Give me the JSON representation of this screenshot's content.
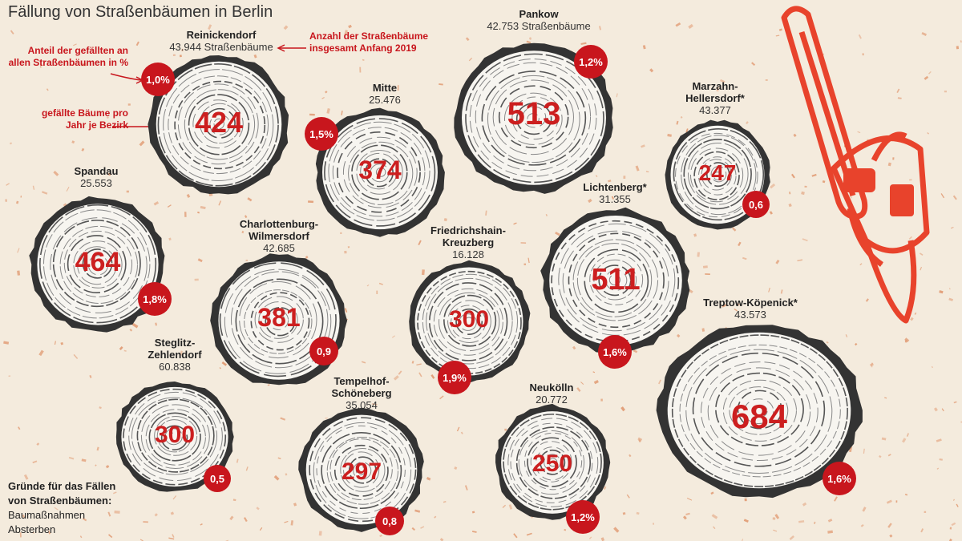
{
  "title": "Fällung von Straßenbäumen in Berlin",
  "annotations": {
    "share": "Anteil der gefällten an allen Straßenbäumen in %",
    "felled": "gefällte Bäume pro Jahr je Bezirk",
    "total": "Anzahl der Straßenbäume insgesamt Anfang 2019"
  },
  "districts": [
    {
      "name": "Reinickendorf",
      "trees": "43.944 Straßenbäume",
      "felled": "424",
      "share": "1,0%"
    },
    {
      "name": "Pankow",
      "trees": "42.753 Straßenbäume",
      "felled": "513",
      "share": "1,2%"
    },
    {
      "name": "Mitte",
      "trees": "25.476",
      "felled": "374",
      "share": "1,5%"
    },
    {
      "name": "Marzahn-Hellersdorf*",
      "trees": "43.377",
      "felled": "247",
      "share": "0,6"
    },
    {
      "name": "Spandau",
      "trees": "25.553",
      "felled": "464",
      "share": "1,8%"
    },
    {
      "name": "Charlottenburg-Wilmersdorf",
      "trees": "42.685",
      "felled": "381",
      "share": "0,9"
    },
    {
      "name": "Friedrichshain-Kreuzberg",
      "trees": "16.128",
      "felled": "300",
      "share": "1,9%"
    },
    {
      "name": "Lichtenberg*",
      "trees": "31.355",
      "felled": "511",
      "share": "1,6%"
    },
    {
      "name": "Treptow-Köpenick*",
      "trees": "43.573",
      "felled": "684",
      "share": "1,6%"
    },
    {
      "name": "Steglitz-Zehlendorf",
      "trees": "60.838",
      "felled": "300",
      "share": "0,5"
    },
    {
      "name": "Tempelhof-Schöneberg",
      "trees": "35.054",
      "felled": "297",
      "share": "0,8"
    },
    {
      "name": "Neukölln",
      "trees": "20.772",
      "felled": "250",
      "share": "1,2%"
    }
  ],
  "legend": {
    "title": "Gründe für das Fällen von Straßenbäumen:",
    "items": [
      "Baumaßnahmen",
      "Absterben"
    ]
  },
  "colors": {
    "accent": "#c8161d",
    "bark": "#333333",
    "wood": "#f7f5f0",
    "sawdust": "#e2a07a"
  },
  "icons": [
    "chainsaw-icon",
    "tree-stump-icon"
  ]
}
